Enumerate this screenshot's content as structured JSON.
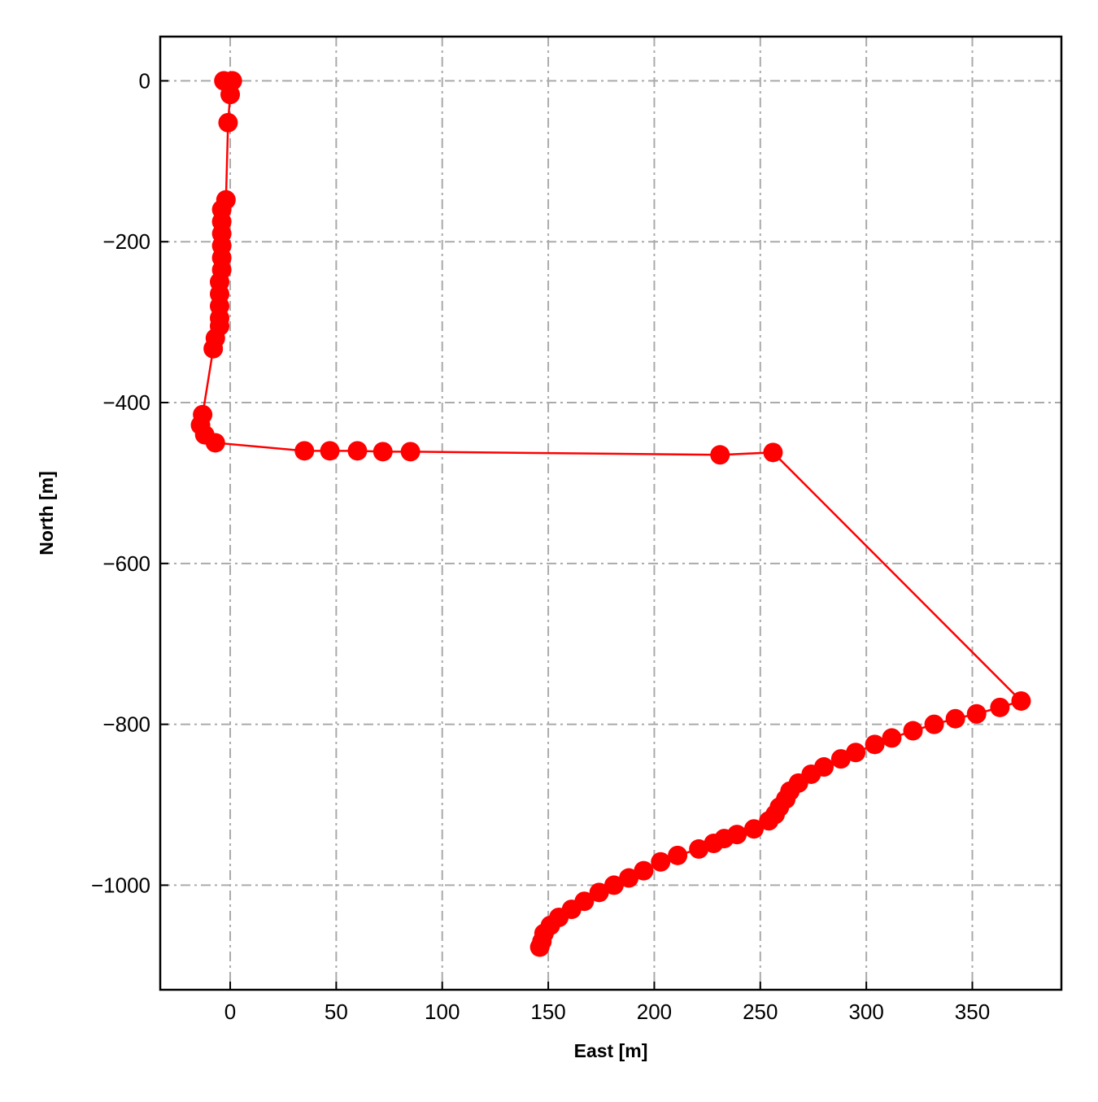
{
  "chart_data": {
    "type": "line",
    "xlabel": "East [m]",
    "ylabel": "North [m]",
    "color": "#ff0000",
    "grid": true,
    "markers": true,
    "x": [
      -3,
      1,
      0,
      -1,
      -2,
      -4,
      -4,
      -4,
      -4,
      -4,
      -4,
      -5,
      -5,
      -5,
      -5,
      -5,
      -7,
      -8,
      -13,
      -14,
      -12,
      -7,
      35,
      47,
      60,
      72,
      85,
      231,
      256,
      373,
      363,
      352,
      342,
      332,
      322,
      312,
      304,
      295,
      288,
      280,
      274,
      268,
      264,
      262,
      259,
      257,
      254,
      247,
      239,
      233,
      228,
      221,
      211,
      203,
      195,
      188,
      181,
      174,
      167,
      161,
      155,
      151,
      148,
      147,
      146
    ],
    "values": [
      0,
      0,
      -17,
      -52,
      -148,
      -160,
      -175,
      -190,
      -205,
      -220,
      -235,
      -250,
      -265,
      -280,
      -295,
      -305,
      -320,
      -333,
      -415,
      -428,
      -440,
      -450,
      -460,
      -460,
      -460,
      -461,
      -461,
      -465,
      -462,
      -771,
      -779,
      -787,
      -793,
      -800,
      -808,
      -817,
      -825,
      -835,
      -843,
      -853,
      -862,
      -873,
      -883,
      -893,
      -903,
      -912,
      -920,
      -930,
      -937,
      -942,
      -948,
      -955,
      -963,
      -971,
      -982,
      -991,
      -1000,
      -1009,
      -1020,
      -1030,
      -1040,
      -1050,
      -1060,
      -1070,
      -1077
    ],
    "xlim": [
      -33,
      392
    ],
    "ylim": [
      -1130,
      55
    ],
    "xticks": [
      0,
      50,
      100,
      150,
      200,
      250,
      300,
      350
    ],
    "yticks": [
      0,
      {
        "value": -200,
        "label": "−200"
      },
      {
        "value": -400,
        "label": "−400"
      },
      {
        "value": -600,
        "label": "−600"
      },
      {
        "value": -800,
        "label": "−800"
      },
      {
        "value": -1000,
        "label": "−1000"
      }
    ]
  }
}
